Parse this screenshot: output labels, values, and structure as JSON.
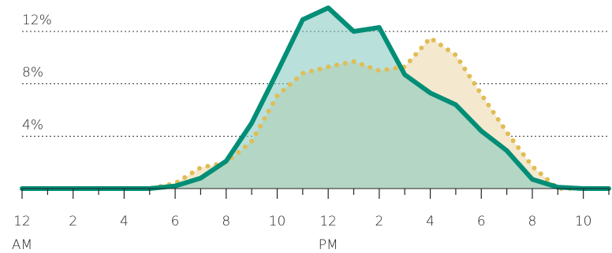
{
  "chart_data": {
    "type": "area",
    "x": [
      0,
      1,
      2,
      3,
      4,
      5,
      6,
      7,
      8,
      9,
      10,
      11,
      12,
      13,
      14,
      15,
      16,
      17,
      18,
      19,
      20,
      21,
      22,
      23
    ],
    "series": [
      {
        "color": "#e0bd55",
        "fill": "#f4e8cf",
        "line_style": "dotted",
        "values": [
          0,
          0,
          0,
          0,
          0,
          0,
          0.4,
          1.6,
          2.0,
          3.6,
          7.1,
          8.8,
          9.3,
          9.7,
          9.0,
          9.3,
          11.5,
          10.2,
          7.2,
          4.3,
          1.7,
          0,
          0,
          0
        ]
      },
      {
        "color": "#008e76",
        "fill": "#7fc6bd",
        "line_style": "solid",
        "values": [
          0,
          0,
          0,
          0,
          0,
          0,
          0.2,
          0.8,
          2.1,
          5.0,
          8.9,
          12.9,
          13.8,
          12.0,
          12.3,
          8.7,
          7.3,
          6.4,
          4.4,
          2.9,
          0.7,
          0.1,
          0,
          0
        ]
      }
    ],
    "xlim": [
      0,
      23
    ],
    "xticks": [
      {
        "value": 0,
        "label": "12"
      },
      2,
      4,
      6,
      8,
      10,
      {
        "value": 12,
        "label": "12"
      },
      {
        "value": 14,
        "label": "2"
      },
      {
        "value": 16,
        "label": "4"
      },
      {
        "value": 18,
        "label": "6"
      },
      {
        "value": 20,
        "label": "8"
      },
      {
        "value": 22,
        "label": "10"
      }
    ],
    "xminor_ticks": [
      1,
      3,
      5,
      7,
      9,
      11,
      13,
      15,
      17,
      19,
      21,
      23
    ],
    "period_labels": [
      {
        "x": 0,
        "label": "AM"
      },
      {
        "x": 12,
        "label": "PM"
      }
    ],
    "ylim": [
      0,
      14.4
    ],
    "yticks": [
      {
        "value": 4,
        "label": "4%"
      },
      {
        "value": 8,
        "label": "8%"
      },
      {
        "value": 12,
        "label": "12%"
      }
    ],
    "grid": true
  }
}
